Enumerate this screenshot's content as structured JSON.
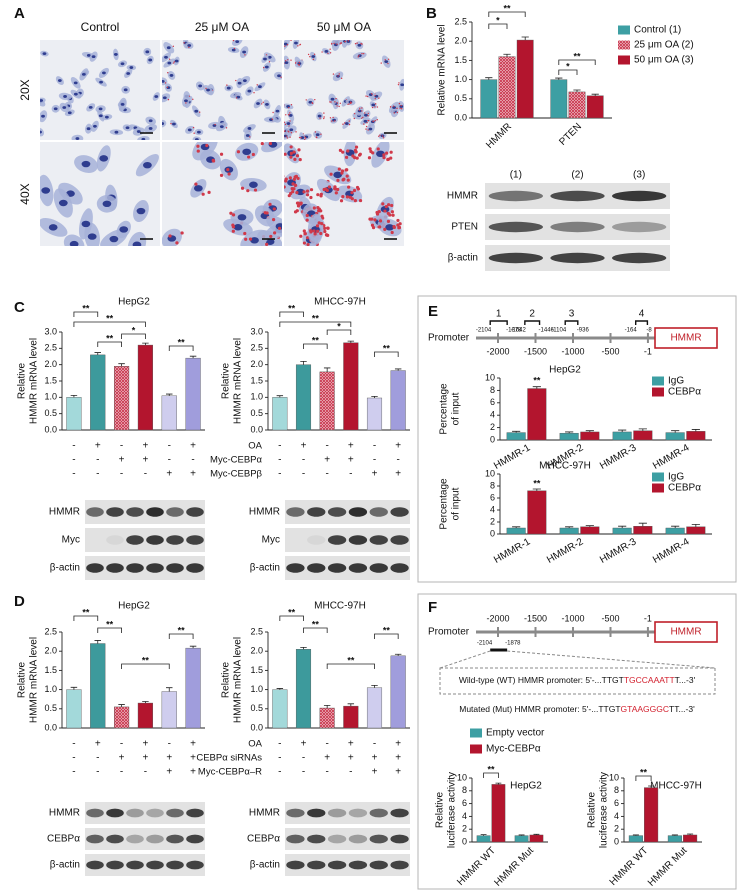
{
  "panel_labels": [
    "A",
    "B",
    "C",
    "D",
    "E",
    "F"
  ],
  "panel_a": {
    "columns": [
      "Control",
      "25 μM OA",
      "50 μM OA"
    ],
    "rows": [
      "20X",
      "40X"
    ]
  },
  "blot_b": {
    "lanes": [
      "(1)",
      "(2)",
      "(3)"
    ],
    "rows": [
      "HMMR",
      "PTEN",
      "β-actin"
    ]
  },
  "panel_c": {
    "conditions": [
      {
        "label": "OA",
        "signs": [
          "-",
          "+",
          "-",
          "+",
          "-",
          "+"
        ]
      },
      {
        "label": "Myc-CEBPα",
        "signs": [
          "-",
          "-",
          "+",
          "+",
          "-",
          "-"
        ]
      },
      {
        "label": "Myc-CEBPβ",
        "signs": [
          "-",
          "-",
          "-",
          "-",
          "+",
          "+"
        ]
      }
    ],
    "blot_rows": [
      "HMMR",
      "Myc",
      "β-actin"
    ]
  },
  "panel_d": {
    "conditions": [
      {
        "label": "OA",
        "signs": [
          "-",
          "+",
          "-",
          "+",
          "-",
          "+"
        ]
      },
      {
        "label": "CEBPα siRNAs",
        "signs": [
          "-",
          "-",
          "+",
          "+",
          "+",
          "+"
        ]
      },
      {
        "label": "Myc-CEBPα–R",
        "signs": [
          "-",
          "-",
          "-",
          "-",
          "+",
          "+"
        ]
      }
    ],
    "blot_rows": [
      "HMMR",
      "CEBPα",
      "β-actin"
    ]
  },
  "panel_e": {
    "promoter": {
      "label": "Promoter",
      "gene": "HMMR",
      "ticks": [
        -2000,
        -1500,
        -1000,
        -500,
        -1
      ],
      "regions": [
        {
          "name": "1",
          "start": -2104,
          "end": -1878
        },
        {
          "name": "2",
          "start": -1642,
          "end": -1446
        },
        {
          "name": "3",
          "start": -1104,
          "end": -936
        },
        {
          "name": "4",
          "start": -164,
          "end": -8
        }
      ]
    }
  },
  "panel_f": {
    "promoter": {
      "label": "Promoter",
      "gene": "HMMR",
      "ticks": [
        -2000,
        -1500,
        -1000,
        -500,
        -1
      ],
      "region": {
        "start": -2104,
        "end": -1878
      }
    },
    "wild_type": [
      "Wild-type (WT) HMMR promoter: 5'-...TTGT",
      "TGCCAAATT",
      "T...-3'"
    ],
    "mutated": [
      "Mutated (Mut) HMMR promoter: 5'-...TTGT",
      "GTAAGGGC",
      "TT...-3'"
    ]
  },
  "chart_data": [
    {
      "type": "bar",
      "y_label": [
        "Relative mRNA level"
      ],
      "categories": [
        "HMMR",
        "PTEN"
      ],
      "series": [
        {
          "name": "Control (1)",
          "color": "#3d9fa3",
          "pattern": "solid",
          "values": [
            1.0,
            1.0
          ],
          "errors": [
            0.05,
            0.04
          ]
        },
        {
          "name": "25 μm OA (2)",
          "color": "#c8324a",
          "pattern": "hatch",
          "values": [
            1.6,
            0.68
          ],
          "errors": [
            0.06,
            0.05
          ]
        },
        {
          "name": "50 μm OA (3)",
          "color": "#b3152e",
          "pattern": "solid",
          "values": [
            2.03,
            0.58
          ],
          "errors": [
            0.08,
            0.04
          ]
        }
      ],
      "annotations": [
        "*",
        "**",
        "*",
        "**"
      ],
      "ylim": [
        0,
        2.5
      ],
      "yticks": [
        {
          "value": 0,
          "label": "0.0"
        },
        0.5,
        {
          "value": 1,
          "label": "1.0"
        },
        1.5,
        {
          "value": 2,
          "label": "2.0"
        },
        2.5
      ]
    },
    {
      "type": "bar",
      "title": "HepG2",
      "y_label": [
        "Relative",
        "HMMR mRNA level"
      ],
      "categories": [
        null,
        null,
        null,
        null,
        null,
        null
      ],
      "values": [
        1.0,
        2.3,
        1.95,
        2.6,
        1.05,
        2.2
      ],
      "errors": [
        0.06,
        0.07,
        0.08,
        0.06,
        0.05,
        0.06
      ],
      "colors": [
        "#a3d9da",
        "#3d9a9c",
        "#c8324a",
        "#b3152e",
        "#cfcdee",
        "#a09ddc"
      ],
      "patterns": [
        "solid",
        "solid",
        "hatch",
        "solid",
        "solid",
        "solid"
      ],
      "annotations": [
        "**",
        "**",
        "**",
        "*",
        "**"
      ],
      "ylim": [
        0,
        3
      ],
      "yticks": [
        {
          "value": 0,
          "label": "0.0"
        },
        0.5,
        {
          "value": 1,
          "label": "1.0"
        },
        1.5,
        {
          "value": 2,
          "label": "2.0"
        },
        2.5,
        {
          "value": 3,
          "label": "3.0"
        }
      ]
    },
    {
      "type": "bar",
      "title": "MHCC-97H",
      "y_label": [
        "Relative",
        "HMMR mRNA level"
      ],
      "categories": [
        null,
        null,
        null,
        null,
        null,
        null
      ],
      "values": [
        1.0,
        2.0,
        1.78,
        2.67,
        0.98,
        1.82
      ],
      "errors": [
        0.05,
        0.1,
        0.12,
        0.05,
        0.05,
        0.05
      ],
      "colors": [
        "#a3d9da",
        "#3d9a9c",
        "#c8324a",
        "#b3152e",
        "#cfcdee",
        "#a09ddc"
      ],
      "patterns": [
        "solid",
        "solid",
        "hatch",
        "solid",
        "solid",
        "solid"
      ],
      "annotations": [
        "**",
        "**",
        "**",
        "*",
        "**"
      ],
      "ylim": [
        0,
        3
      ],
      "yticks": [
        {
          "value": 0,
          "label": "0.0"
        },
        0.5,
        {
          "value": 1,
          "label": "1.0"
        },
        1.5,
        {
          "value": 2,
          "label": "2.0"
        },
        2.5,
        {
          "value": 3,
          "label": "3.0"
        }
      ]
    },
    {
      "type": "bar",
      "title": "HepG2",
      "y_label": [
        "Relative",
        "HMMR mRNA level"
      ],
      "categories": [
        null,
        null,
        null,
        null,
        null,
        null
      ],
      "values": [
        1.0,
        2.2,
        0.55,
        0.65,
        0.95,
        2.08
      ],
      "errors": [
        0.06,
        0.08,
        0.06,
        0.04,
        0.1,
        0.05
      ],
      "colors": [
        "#a3d9da",
        "#3d9a9c",
        "#c8324a",
        "#b3152e",
        "#cfcdee",
        "#a09ddc"
      ],
      "patterns": [
        "solid",
        "solid",
        "hatch",
        "solid",
        "solid",
        "solid"
      ],
      "annotations": [
        "**",
        "**",
        "**",
        "**"
      ],
      "ylim": [
        0,
        2.5
      ],
      "yticks": [
        {
          "value": 0,
          "label": "0.0"
        },
        0.5,
        {
          "value": 1,
          "label": "1.0"
        },
        1.5,
        {
          "value": 2,
          "label": "2.0"
        },
        2.5
      ]
    },
    {
      "type": "bar",
      "title": "MHCC-97H",
      "y_label": [
        "Relative",
        "HMMR mRNA level"
      ],
      "categories": [
        null,
        null,
        null,
        null,
        null,
        null
      ],
      "values": [
        1.0,
        2.05,
        0.52,
        0.57,
        1.05,
        1.88
      ],
      "errors": [
        0.03,
        0.05,
        0.07,
        0.06,
        0.06,
        0.04
      ],
      "colors": [
        "#a3d9da",
        "#3d9a9c",
        "#c8324a",
        "#b3152e",
        "#cfcdee",
        "#a09ddc"
      ],
      "patterns": [
        "solid",
        "solid",
        "hatch",
        "solid",
        "solid",
        "solid"
      ],
      "annotations": [
        "**",
        "**",
        "**",
        "**"
      ],
      "ylim": [
        0,
        2.5
      ],
      "yticks": [
        {
          "value": 0,
          "label": "0.0"
        },
        0.5,
        {
          "value": 1,
          "label": "1.0"
        },
        1.5,
        {
          "value": 2,
          "label": "2.0"
        },
        2.5
      ]
    },
    {
      "type": "bar",
      "title": "HepG2",
      "y_label": [
        "Percentage",
        "of input"
      ],
      "categories": [
        "HMMR-1",
        "HMMR-2",
        "HMMR-3",
        "HMMR-4"
      ],
      "series": [
        {
          "name": "IgG",
          "color": "#3d9fa3",
          "pattern": "solid",
          "values": [
            1.2,
            1.1,
            1.3,
            1.2
          ],
          "errors": [
            0.2,
            0.2,
            0.3,
            0.3
          ]
        },
        {
          "name": "CEBPα",
          "color": "#b3152e",
          "pattern": "solid",
          "values": [
            8.3,
            1.3,
            1.5,
            1.4
          ],
          "errors": [
            0.3,
            0.2,
            0.3,
            0.3
          ]
        }
      ],
      "annotations": [
        "**"
      ],
      "ylim": [
        0,
        10
      ],
      "yticks": [
        0,
        2,
        4,
        6,
        8,
        10
      ]
    },
    {
      "type": "bar",
      "title": "MHCC-97H",
      "y_label": [
        "Percentage",
        "of input"
      ],
      "categories": [
        "HMMR-1",
        "HMMR-2",
        "HMMR-3",
        "HMMR-4"
      ],
      "series": [
        {
          "name": "IgG",
          "color": "#3d9fa3",
          "pattern": "solid",
          "values": [
            1.0,
            1.0,
            1.0,
            1.0
          ],
          "errors": [
            0.2,
            0.2,
            0.3,
            0.3
          ]
        },
        {
          "name": "CEBPα",
          "color": "#b3152e",
          "pattern": "solid",
          "values": [
            7.2,
            1.2,
            1.3,
            1.2
          ],
          "errors": [
            0.3,
            0.2,
            0.5,
            0.4
          ]
        }
      ],
      "annotations": [
        "**"
      ],
      "ylim": [
        0,
        10
      ],
      "yticks": [
        0,
        2,
        4,
        6,
        8,
        10
      ]
    },
    {
      "type": "bar",
      "title": "HepG2",
      "y_label": [
        "Relative",
        "luciferase activity"
      ],
      "categories": [
        "HMMR WT",
        "HMMR Mut"
      ],
      "series": [
        {
          "name": "Empty vector",
          "color": "#3d9fa3",
          "pattern": "solid",
          "values": [
            1.0,
            1.0
          ],
          "errors": [
            0.15,
            0.1
          ]
        },
        {
          "name": "Myc-CEBPα",
          "color": "#b3152e",
          "pattern": "solid",
          "values": [
            9.0,
            1.1
          ],
          "errors": [
            0.2,
            0.1
          ]
        }
      ],
      "annotations": [
        "**"
      ],
      "ylim": [
        0,
        10
      ],
      "yticks": [
        0,
        2,
        4,
        6,
        8,
        10
      ]
    },
    {
      "type": "bar",
      "title": "MHCC-97H",
      "y_label": [
        "Relative",
        "luciferase activity"
      ],
      "categories": [
        "HMMR WT",
        "HMMR Mut"
      ],
      "series": [
        {
          "color": "#3d9fa3",
          "pattern": "solid",
          "values": [
            1.0,
            1.0
          ],
          "errors": [
            0.1,
            0.1
          ]
        },
        {
          "color": "#b3152e",
          "pattern": "solid",
          "values": [
            8.5,
            1.1
          ],
          "errors": [
            0.25,
            0.15
          ]
        }
      ],
      "annotations": [
        "**"
      ],
      "ylim": [
        0,
        10
      ],
      "yticks": [
        0,
        2,
        4,
        6,
        8,
        10
      ]
    }
  ]
}
